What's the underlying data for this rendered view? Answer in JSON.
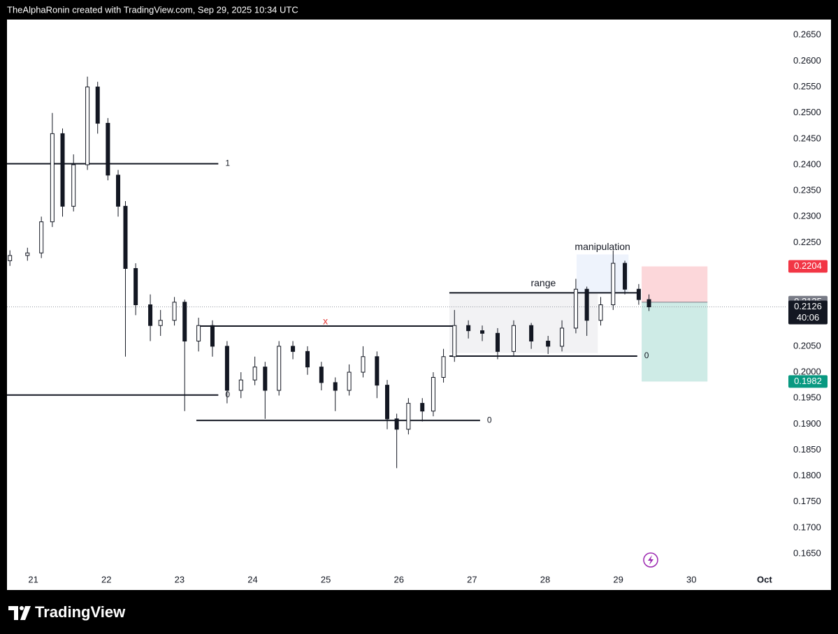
{
  "header": "TheAlphaRonin created with TradingView.com, Sep 29, 2025 10:34 UTC",
  "footer": "TradingView",
  "chart_data": {
    "type": "candlestick",
    "color": "#131722",
    "grid": false,
    "xlim": [
      20.64,
      31.25
    ],
    "ylim": [
      0.158,
      0.268
    ],
    "xticks": [
      21,
      22,
      23,
      24,
      25,
      26,
      27,
      28,
      29,
      30,
      {
        "value": 31,
        "label": "Oct"
      }
    ],
    "yticks": [
      {
        "value": 0.265,
        "label": "0.2650"
      },
      {
        "value": 0.26,
        "label": "0.2600"
      },
      {
        "value": 0.255,
        "label": "0.2550"
      },
      {
        "value": 0.25,
        "label": "0.2500"
      },
      {
        "value": 0.245,
        "label": "0.2450"
      },
      {
        "value": 0.24,
        "label": "0.2400"
      },
      {
        "value": 0.235,
        "label": "0.2350"
      },
      {
        "value": 0.23,
        "label": "0.2300"
      },
      {
        "value": 0.225,
        "label": "0.2250"
      },
      {
        "value": 0.205,
        "label": "0.2050"
      },
      {
        "value": 0.2,
        "label": "0.2000"
      },
      {
        "value": 0.195,
        "label": "0.1950"
      },
      {
        "value": 0.19,
        "label": "0.1900"
      },
      {
        "value": 0.185,
        "label": "0.1850"
      },
      {
        "value": 0.18,
        "label": "0.1800"
      },
      {
        "value": 0.175,
        "label": "0.1750"
      },
      {
        "value": 0.17,
        "label": "0.1700"
      },
      {
        "value": 0.165,
        "label": "0.1650"
      }
    ],
    "x": [
      20.68,
      20.92,
      21.11,
      21.26,
      21.4,
      21.55,
      21.74,
      21.88,
      22.02,
      22.16,
      22.26,
      22.4,
      22.6,
      22.74,
      22.93,
      23.07,
      23.26,
      23.45,
      23.65,
      23.84,
      24.03,
      24.17,
      24.36,
      24.55,
      24.75,
      24.94,
      25.13,
      25.32,
      25.51,
      25.7,
      25.84,
      25.97,
      26.13,
      26.32,
      26.47,
      26.61,
      26.76,
      26.95,
      27.14,
      27.35,
      27.57,
      27.81,
      28.04,
      28.23,
      28.42,
      28.57,
      28.76,
      28.93,
      29.09,
      29.28,
      29.42
    ],
    "open": [
      0.2215,
      0.2225,
      0.223,
      0.229,
      0.246,
      0.232,
      0.24,
      0.255,
      0.248,
      0.238,
      0.232,
      0.22,
      0.213,
      0.209,
      0.21,
      0.2135,
      0.206,
      0.209,
      0.205,
      0.1965,
      0.1985,
      0.201,
      0.1965,
      0.205,
      0.204,
      0.201,
      0.198,
      0.1965,
      0.2,
      0.203,
      0.1975,
      0.191,
      0.189,
      0.194,
      0.1925,
      0.199,
      0.203,
      0.209,
      0.208,
      0.2075,
      0.204,
      0.209,
      0.206,
      0.205,
      0.2085,
      0.216,
      0.21,
      0.213,
      0.221,
      0.216,
      0.214
    ],
    "high": [
      0.2235,
      0.224,
      0.23,
      0.25,
      0.247,
      0.242,
      0.257,
      0.256,
      0.249,
      0.239,
      0.233,
      0.221,
      0.215,
      0.212,
      0.2145,
      0.214,
      0.2105,
      0.21,
      0.206,
      0.2,
      0.203,
      0.202,
      0.206,
      0.206,
      0.205,
      0.202,
      0.199,
      0.2015,
      0.205,
      0.204,
      0.1985,
      0.192,
      0.195,
      0.195,
      0.2,
      0.2045,
      0.212,
      0.21,
      0.209,
      0.2085,
      0.21,
      0.2095,
      0.207,
      0.21,
      0.218,
      0.2165,
      0.2145,
      0.2235,
      0.2215,
      0.217,
      0.215
    ],
    "low": [
      0.2205,
      0.2215,
      0.222,
      0.228,
      0.23,
      0.231,
      0.239,
      0.246,
      0.237,
      0.23,
      0.203,
      0.211,
      0.206,
      0.207,
      0.209,
      0.1925,
      0.204,
      0.203,
      0.194,
      0.195,
      0.1975,
      0.191,
      0.1955,
      0.2025,
      0.1995,
      0.1965,
      0.1925,
      0.1955,
      0.199,
      0.195,
      0.189,
      0.1815,
      0.188,
      0.1905,
      0.1915,
      0.198,
      0.202,
      0.2065,
      0.206,
      0.2025,
      0.203,
      0.2045,
      0.2035,
      0.204,
      0.2075,
      0.207,
      0.209,
      0.212,
      0.215,
      0.213,
      0.2118
    ],
    "close": [
      0.2225,
      0.223,
      0.229,
      0.246,
      0.232,
      0.24,
      0.255,
      0.248,
      0.238,
      0.232,
      0.22,
      0.213,
      0.209,
      0.21,
      0.2135,
      0.206,
      0.209,
      0.205,
      0.1965,
      0.1985,
      0.201,
      0.1965,
      0.205,
      0.204,
      0.201,
      0.198,
      0.1965,
      0.2,
      0.203,
      0.1975,
      0.191,
      0.189,
      0.194,
      0.1925,
      0.199,
      0.203,
      0.209,
      0.208,
      0.2075,
      0.204,
      0.209,
      0.206,
      0.205,
      0.2085,
      0.216,
      0.21,
      0.213,
      0.221,
      0.216,
      0.214,
      0.2126
    ],
    "levels": [
      {
        "value": 0.2402,
        "start": 20.64,
        "end": 23.53,
        "label": "1",
        "label_position": "end",
        "color": "#131722"
      },
      {
        "value": 0.1956,
        "start": 20.64,
        "end": 23.53,
        "label": "0",
        "label_position": "end",
        "color": "#131722"
      },
      {
        "value": 0.2089,
        "start": 23.25,
        "end": 26.74,
        "label": "x",
        "label_position": "center",
        "color": "#e53935"
      },
      {
        "value": 0.1907,
        "start": 23.23,
        "end": 27.11,
        "label": "0",
        "label_position": "end",
        "color": "#131722"
      },
      {
        "value": 0.2153,
        "start": 26.69,
        "end": 29.26,
        "label": "range",
        "label_position": "above",
        "color": "#131722"
      },
      {
        "value": 0.2031,
        "start": 26.69,
        "end": 29.26,
        "label": "0",
        "label_position": "end",
        "color": "#131722"
      }
    ],
    "boxes": [
      {
        "start": 26.69,
        "end": 28.72,
        "top": 0.2153,
        "bottom": 0.2037,
        "color": "#f2f2f4"
      },
      {
        "start": 28.43,
        "end": 29.14,
        "top": 0.2227,
        "bottom": 0.2153,
        "color": "#eef3fc",
        "label": "manipulation"
      }
    ],
    "position": {
      "start": 29.32,
      "end": 30.22,
      "stop": 0.2204,
      "entry": 0.2135,
      "target": 0.1982
    },
    "last": {
      "value": 0.2126,
      "countdown": "40:06"
    }
  }
}
